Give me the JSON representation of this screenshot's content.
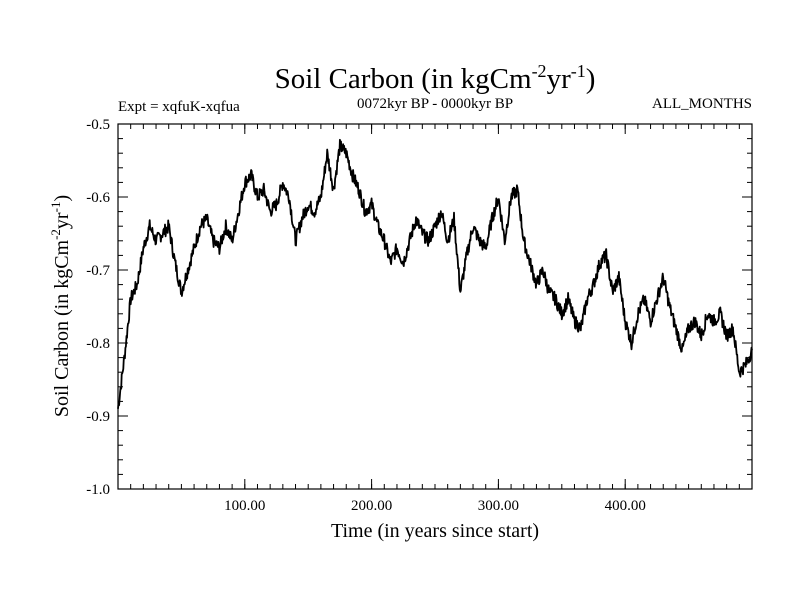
{
  "chart_data": {
    "type": "line",
    "title_main": "Soil Carbon (in kgCm",
    "title_sup1": "-2",
    "title_mid": "yr",
    "title_sup2": "-1",
    "title_close": ")",
    "subtitle_left": "Expt = xqfuK-xqfua",
    "subtitle_center": "0072kyr BP - 0000kyr BP",
    "subtitle_right": "ALL_MONTHS",
    "xlabel": "Time (in years since start)",
    "ylabel_main": "Soil Carbon (in kgCm",
    "ylabel_sup1": "-2",
    "ylabel_mid": "yr",
    "ylabel_sup2": "-1",
    "ylabel_close": ")",
    "xlim": [
      0,
      500
    ],
    "ylim": [
      -1.0,
      -0.5
    ],
    "x_ticks": [
      100,
      200,
      300,
      400
    ],
    "x_tick_labels": [
      "100.00",
      "200.00",
      "300.00",
      "400.00"
    ],
    "y_ticks": [
      -1.0,
      -0.9,
      -0.8,
      -0.7,
      -0.6,
      -0.5
    ],
    "y_tick_labels": [
      "-1.0",
      "-0.9",
      "-0.8",
      "-0.7",
      "-0.6",
      "-0.5"
    ],
    "x_minor_step": 10,
    "y_minor_step": 0.02,
    "series": [
      {
        "name": "Soil Carbon",
        "x": [
          0,
          5,
          10,
          15,
          20,
          25,
          30,
          35,
          40,
          45,
          50,
          55,
          60,
          65,
          70,
          75,
          80,
          85,
          90,
          95,
          100,
          105,
          110,
          115,
          120,
          125,
          130,
          135,
          140,
          145,
          150,
          155,
          160,
          165,
          170,
          175,
          180,
          185,
          190,
          195,
          200,
          205,
          210,
          215,
          220,
          225,
          230,
          235,
          240,
          245,
          250,
          255,
          260,
          265,
          270,
          275,
          280,
          285,
          290,
          295,
          300,
          305,
          310,
          315,
          320,
          325,
          330,
          335,
          340,
          345,
          350,
          355,
          360,
          365,
          370,
          375,
          380,
          385,
          390,
          395,
          400,
          405,
          410,
          415,
          420,
          425,
          430,
          435,
          440,
          445,
          450,
          455,
          460,
          465,
          470,
          475,
          480,
          485,
          490,
          495,
          500
        ],
        "values": [
          -0.89,
          -0.82,
          -0.74,
          -0.72,
          -0.67,
          -0.64,
          -0.66,
          -0.65,
          -0.64,
          -0.69,
          -0.73,
          -0.7,
          -0.67,
          -0.64,
          -0.63,
          -0.66,
          -0.67,
          -0.64,
          -0.66,
          -0.62,
          -0.58,
          -0.57,
          -0.6,
          -0.59,
          -0.62,
          -0.61,
          -0.58,
          -0.6,
          -0.66,
          -0.63,
          -0.61,
          -0.62,
          -0.6,
          -0.54,
          -0.59,
          -0.53,
          -0.54,
          -0.57,
          -0.59,
          -0.62,
          -0.61,
          -0.64,
          -0.66,
          -0.69,
          -0.67,
          -0.69,
          -0.66,
          -0.63,
          -0.65,
          -0.66,
          -0.64,
          -0.62,
          -0.66,
          -0.63,
          -0.73,
          -0.68,
          -0.64,
          -0.66,
          -0.67,
          -0.63,
          -0.6,
          -0.66,
          -0.6,
          -0.59,
          -0.66,
          -0.69,
          -0.72,
          -0.7,
          -0.73,
          -0.74,
          -0.76,
          -0.74,
          -0.77,
          -0.78,
          -0.74,
          -0.72,
          -0.69,
          -0.68,
          -0.73,
          -0.71,
          -0.77,
          -0.8,
          -0.76,
          -0.74,
          -0.77,
          -0.74,
          -0.71,
          -0.75,
          -0.78,
          -0.81,
          -0.78,
          -0.77,
          -0.79,
          -0.76,
          -0.77,
          -0.76,
          -0.79,
          -0.78,
          -0.84,
          -0.83,
          -0.81
        ]
      }
    ]
  }
}
